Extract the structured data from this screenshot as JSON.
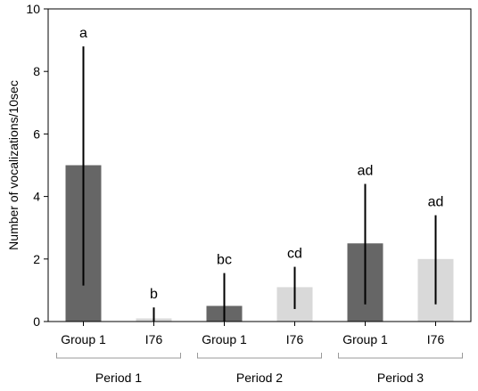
{
  "chart_data": {
    "type": "bar",
    "ylabel": "Number of vocalizations/10sec",
    "ylim": [
      0,
      10
    ],
    "yticks": [
      "0",
      "2",
      "4",
      "6",
      "8",
      "10"
    ],
    "grid": false,
    "legend": "none",
    "groups": [
      "Period 1",
      "Period 2",
      "Period 3"
    ],
    "bars": [
      {
        "group": 0,
        "category": "Group 1",
        "value": 5.0,
        "err_low": 1.15,
        "err_high": 8.8,
        "letter": "a",
        "color": "#666666"
      },
      {
        "group": 0,
        "category": "I76",
        "value": 0.1,
        "err_low": 0.0,
        "err_high": 0.45,
        "letter": "b",
        "color": "#d9d9d9"
      },
      {
        "group": 1,
        "category": "Group 1",
        "value": 0.5,
        "err_low": 0.0,
        "err_high": 1.55,
        "letter": "bc",
        "color": "#666666"
      },
      {
        "group": 1,
        "category": "I76",
        "value": 1.1,
        "err_low": 0.4,
        "err_high": 1.75,
        "letter": "cd",
        "color": "#d9d9d9"
      },
      {
        "group": 2,
        "category": "Group 1",
        "value": 2.5,
        "err_low": 0.55,
        "err_high": 4.4,
        "letter": "ad",
        "color": "#666666"
      },
      {
        "group": 2,
        "category": "I76",
        "value": 2.0,
        "err_low": 0.55,
        "err_high": 3.4,
        "letter": "ad",
        "color": "#d9d9d9"
      }
    ]
  }
}
